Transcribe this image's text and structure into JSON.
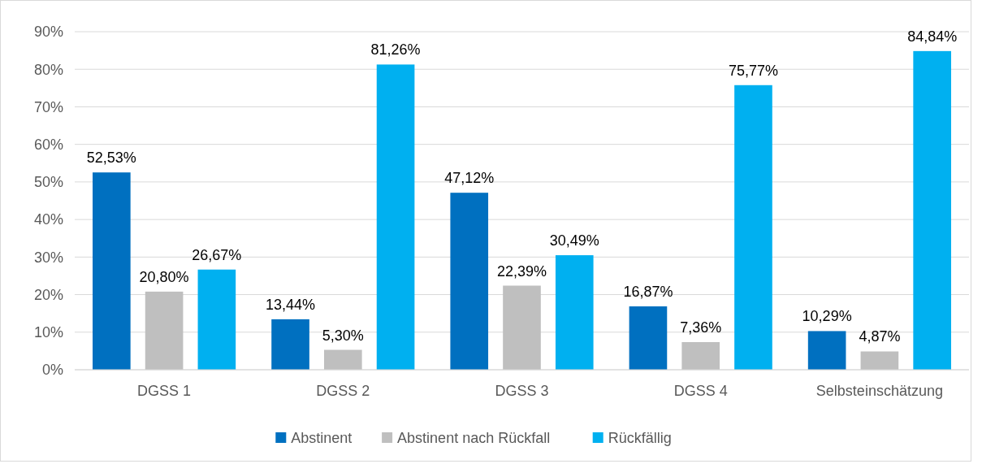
{
  "chart_data": {
    "type": "bar",
    "categories": [
      "DGSS 1",
      "DGSS 2",
      "DGSS 3",
      "DGSS 4",
      "Selbsteinschätzung"
    ],
    "series": [
      {
        "name": "Abstinent",
        "color": "#0070c0",
        "values": [
          52.53,
          13.44,
          47.12,
          16.87,
          10.29
        ],
        "value_labels": [
          "52,53%",
          "13,44%",
          "47,12%",
          "16,87%",
          "10,29%"
        ]
      },
      {
        "name": "Abstinent nach Rückfall",
        "color": "#bfbfbf",
        "values": [
          20.8,
          5.3,
          22.39,
          7.36,
          4.87
        ],
        "value_labels": [
          "20,80%",
          "5,30%",
          "22,39%",
          "7,36%",
          "4,87%"
        ]
      },
      {
        "name": "Rückfällig",
        "color": "#00b0f0",
        "values": [
          26.67,
          81.26,
          30.49,
          75.77,
          84.84
        ],
        "value_labels": [
          "26,67%",
          "81,26%",
          "30,49%",
          "75,77%",
          "84,84%"
        ]
      }
    ],
    "ylim": [
      0,
      90
    ],
    "yticks": [
      {
        "value": 0,
        "label": "0%"
      },
      {
        "value": 10,
        "label": "10%"
      },
      {
        "value": 20,
        "label": "20%"
      },
      {
        "value": 30,
        "label": "30%"
      },
      {
        "value": 40,
        "label": "40%"
      },
      {
        "value": 50,
        "label": "50%"
      },
      {
        "value": 60,
        "label": "60%"
      },
      {
        "value": 70,
        "label": "70%"
      },
      {
        "value": 80,
        "label": "80%"
      },
      {
        "value": 90,
        "label": "90%"
      }
    ],
    "grid": "y",
    "legend": "bottom"
  }
}
